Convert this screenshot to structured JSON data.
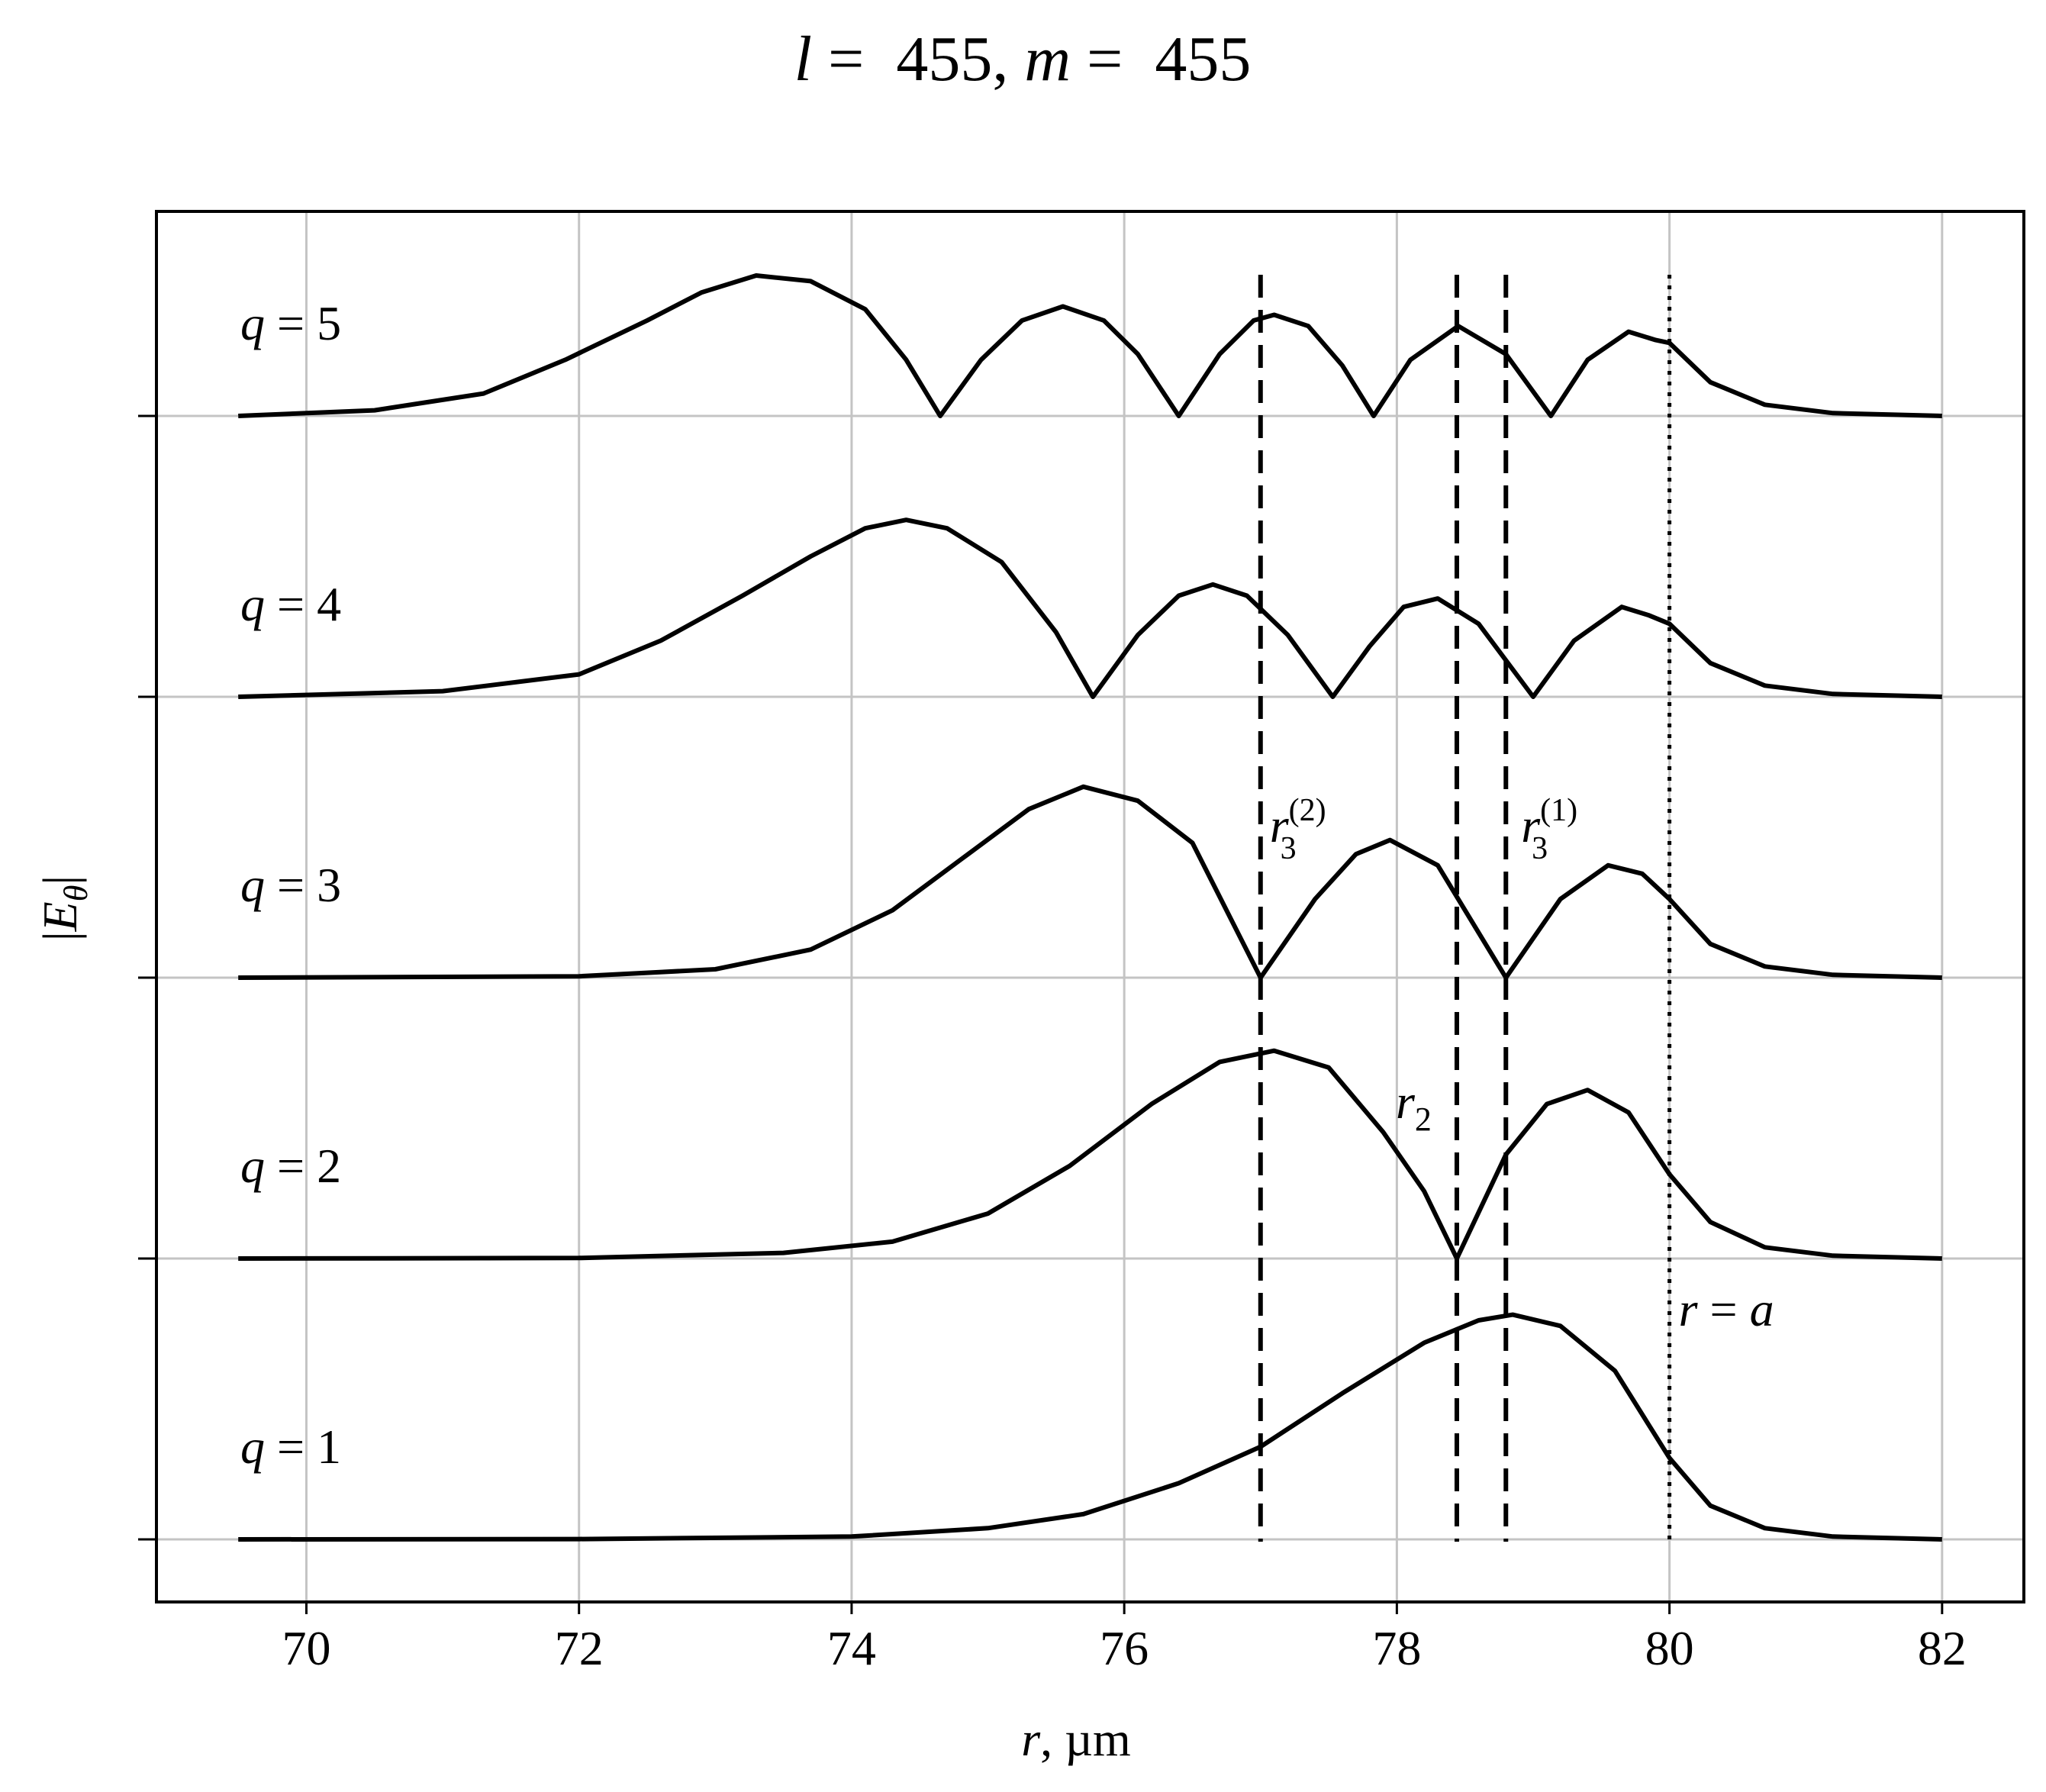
{
  "chart_data": {
    "type": "line",
    "title": {
      "l_sym": "l",
      "eq1": " =  455, ",
      "m_sym": "m",
      "eq2": " =  455"
    },
    "xlabel": {
      "sym": "r",
      "rest": ", µm"
    },
    "ylabel": {
      "pre": "|",
      "sym": "E",
      "sub": "θ",
      "post": "|"
    },
    "xlim": [
      68.9,
      82.6
    ],
    "xticks": [
      70,
      72,
      74,
      76,
      78,
      80,
      82
    ],
    "xtick_labels": [
      "70",
      "72",
      "74",
      "76",
      "78",
      "80",
      "82"
    ],
    "grid": true,
    "series": [
      {
        "name": "q = 1",
        "baseline": 0,
        "points": [
          [
            69.5,
            0
          ],
          [
            72,
            0.001
          ],
          [
            74,
            0.01
          ],
          [
            75,
            0.04
          ],
          [
            75.7,
            0.09
          ],
          [
            76.4,
            0.2
          ],
          [
            77,
            0.33
          ],
          [
            77.6,
            0.52
          ],
          [
            78.2,
            0.7
          ],
          [
            78.6,
            0.78
          ],
          [
            78.85,
            0.8
          ],
          [
            79.2,
            0.76
          ],
          [
            79.6,
            0.6
          ],
          [
            80,
            0.29
          ],
          [
            80.3,
            0.12
          ],
          [
            80.7,
            0.04
          ],
          [
            81.2,
            0.01
          ],
          [
            82,
            0
          ]
        ]
      },
      {
        "name": "q = 2",
        "baseline": 1,
        "points": [
          [
            69.5,
            0
          ],
          [
            72,
            0.002
          ],
          [
            73.5,
            0.02
          ],
          [
            74.3,
            0.06
          ],
          [
            75,
            0.16
          ],
          [
            75.6,
            0.33
          ],
          [
            76.2,
            0.55
          ],
          [
            76.7,
            0.7
          ],
          [
            77.1,
            0.74
          ],
          [
            77.5,
            0.68
          ],
          [
            77.9,
            0.45
          ],
          [
            78.2,
            0.24
          ],
          [
            78.44,
            0
          ],
          [
            78.8,
            0.37
          ],
          [
            79.1,
            0.55
          ],
          [
            79.4,
            0.6
          ],
          [
            79.7,
            0.52
          ],
          [
            80,
            0.3
          ],
          [
            80.3,
            0.13
          ],
          [
            80.7,
            0.04
          ],
          [
            81.2,
            0.01
          ],
          [
            82,
            0
          ]
        ]
      },
      {
        "name": "q = 3",
        "baseline": 2,
        "points": [
          [
            69.5,
            0
          ],
          [
            72,
            0.005
          ],
          [
            73,
            0.03
          ],
          [
            73.7,
            0.1
          ],
          [
            74.3,
            0.24
          ],
          [
            74.8,
            0.42
          ],
          [
            75.3,
            0.6
          ],
          [
            75.7,
            0.68
          ],
          [
            76.1,
            0.63
          ],
          [
            76.5,
            0.48
          ],
          [
            77,
            0
          ],
          [
            77.4,
            0.28
          ],
          [
            77.7,
            0.44
          ],
          [
            77.95,
            0.49
          ],
          [
            78.3,
            0.4
          ],
          [
            78.8,
            0
          ],
          [
            79.2,
            0.28
          ],
          [
            79.55,
            0.4
          ],
          [
            79.8,
            0.37
          ],
          [
            80,
            0.28
          ],
          [
            80.3,
            0.12
          ],
          [
            80.7,
            0.04
          ],
          [
            81.2,
            0.01
          ],
          [
            82,
            0
          ]
        ]
      },
      {
        "name": "q = 4",
        "baseline": 3,
        "points": [
          [
            69.5,
            0
          ],
          [
            71,
            0.02
          ],
          [
            72,
            0.08
          ],
          [
            72.6,
            0.2
          ],
          [
            73.2,
            0.36
          ],
          [
            73.7,
            0.5
          ],
          [
            74.1,
            0.6
          ],
          [
            74.4,
            0.63
          ],
          [
            74.7,
            0.6
          ],
          [
            75.1,
            0.48
          ],
          [
            75.5,
            0.23
          ],
          [
            75.77,
            0
          ],
          [
            76.1,
            0.22
          ],
          [
            76.4,
            0.36
          ],
          [
            76.65,
            0.4
          ],
          [
            76.9,
            0.36
          ],
          [
            77.2,
            0.22
          ],
          [
            77.53,
            0
          ],
          [
            77.8,
            0.18
          ],
          [
            78.05,
            0.32
          ],
          [
            78.3,
            0.35
          ],
          [
            78.6,
            0.26
          ],
          [
            79,
            0
          ],
          [
            79.3,
            0.2
          ],
          [
            79.65,
            0.32
          ],
          [
            79.85,
            0.29
          ],
          [
            80,
            0.26
          ],
          [
            80.3,
            0.12
          ],
          [
            80.7,
            0.04
          ],
          [
            81.2,
            0.01
          ],
          [
            82,
            0
          ]
        ]
      },
      {
        "name": "q = 5",
        "baseline": 4,
        "points": [
          [
            69.5,
            0
          ],
          [
            70.5,
            0.02
          ],
          [
            71.3,
            0.08
          ],
          [
            71.9,
            0.2
          ],
          [
            72.5,
            0.34
          ],
          [
            72.9,
            0.44
          ],
          [
            73.3,
            0.5
          ],
          [
            73.7,
            0.48
          ],
          [
            74.1,
            0.38
          ],
          [
            74.4,
            0.2
          ],
          [
            74.65,
            0
          ],
          [
            74.95,
            0.2
          ],
          [
            75.25,
            0.34
          ],
          [
            75.55,
            0.39
          ],
          [
            75.85,
            0.34
          ],
          [
            76.1,
            0.22
          ],
          [
            76.4,
            0
          ],
          [
            76.7,
            0.22
          ],
          [
            76.95,
            0.34
          ],
          [
            77.1,
            0.36
          ],
          [
            77.35,
            0.32
          ],
          [
            77.6,
            0.18
          ],
          [
            77.83,
            0
          ],
          [
            78.1,
            0.2
          ],
          [
            78.45,
            0.32
          ],
          [
            78.8,
            0.22
          ],
          [
            79.13,
            0
          ],
          [
            79.4,
            0.2
          ],
          [
            79.7,
            0.3
          ],
          [
            79.9,
            0.27
          ],
          [
            80,
            0.26
          ],
          [
            80.3,
            0.12
          ],
          [
            80.7,
            0.04
          ],
          [
            81.2,
            0.01
          ],
          [
            82,
            0
          ]
        ]
      }
    ],
    "vlines": [
      {
        "x": 77.0,
        "style": "dashed"
      },
      {
        "x": 78.44,
        "style": "dashed"
      },
      {
        "x": 78.8,
        "style": "dashed"
      },
      {
        "x": 80.0,
        "style": "dotted"
      }
    ],
    "series_labels": [
      {
        "series": 0,
        "sym": "q",
        "text": " = 1"
      },
      {
        "series": 1,
        "sym": "q",
        "text": " = 2"
      },
      {
        "series": 2,
        "sym": "q",
        "text": " = 3"
      },
      {
        "series": 3,
        "sym": "q",
        "text": " = 4"
      },
      {
        "series": 4,
        "sym": "q",
        "text": " = 5"
      }
    ],
    "annotations": [
      {
        "id": "r3_2",
        "sym": "r",
        "sub": "3",
        "sup": "(2)"
      },
      {
        "id": "r3_1",
        "sym": "r",
        "sub": "3",
        "sup": "(1)"
      },
      {
        "id": "r2",
        "sym": "r",
        "sub": "2"
      },
      {
        "id": "r_a",
        "sym": "r",
        "text": " = ",
        "sym2": "a"
      }
    ]
  }
}
